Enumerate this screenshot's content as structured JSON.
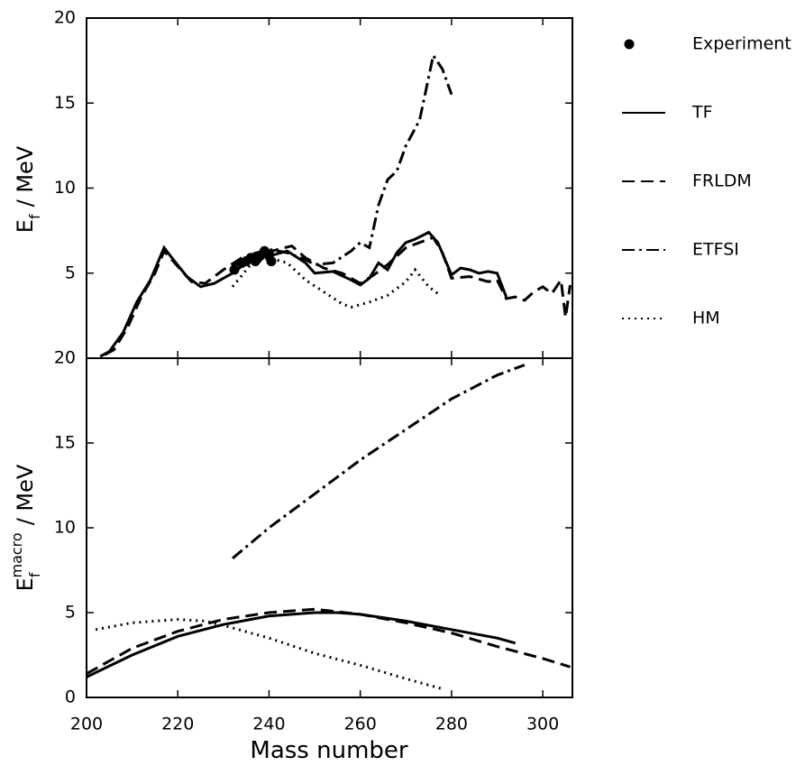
{
  "chart_data": [
    {
      "type": "line",
      "ylabel": "E",
      "ylabel_sub": "f",
      "ylabel_unit": "/ MeV",
      "ylim": [
        0,
        20
      ],
      "yticks": [
        5,
        10,
        15,
        20
      ],
      "series": [
        {
          "name": "Experiment",
          "color": "#000000",
          "marker": "dot",
          "x": [
            232.4,
            234,
            235,
            236,
            237,
            238,
            239,
            240,
            240.5
          ],
          "values": [
            5.2,
            5.6,
            5.7,
            5.9,
            5.7,
            6.0,
            6.3,
            6.1,
            5.7
          ]
        },
        {
          "name": "TF",
          "color": "#000000",
          "dash": "none",
          "x": [
            203,
            205,
            208,
            211,
            214,
            217,
            219,
            222,
            225,
            228,
            232,
            236,
            240,
            244,
            248,
            250,
            254,
            258,
            260,
            262,
            264,
            266,
            268,
            270,
            272,
            275,
            277,
            280,
            282,
            284,
            286,
            288,
            290,
            292
          ],
          "values": [
            0.1,
            0.4,
            1.5,
            3.3,
            4.6,
            6.5,
            5.8,
            4.8,
            4.2,
            4.4,
            5.0,
            5.8,
            6.0,
            6.3,
            5.6,
            5.0,
            5.1,
            4.6,
            4.3,
            4.7,
            5.6,
            5.2,
            6.2,
            6.8,
            7.0,
            7.4,
            6.8,
            4.9,
            5.3,
            5.2,
            5.0,
            5.1,
            5.0,
            3.6
          ]
        },
        {
          "name": "FRLDM",
          "color": "#000000",
          "dash": "14 7",
          "x": [
            204,
            206,
            209,
            212,
            215,
            217,
            220,
            223,
            226,
            230,
            234,
            238,
            242,
            245,
            248,
            252,
            256,
            260,
            263,
            266,
            270,
            273,
            276,
            278,
            280,
            284,
            288,
            290,
            292,
            294,
            296,
            298,
            300,
            302,
            304,
            305,
            306
          ],
          "values": [
            0.2,
            0.5,
            1.8,
            3.6,
            5.0,
            6.3,
            5.4,
            4.5,
            4.4,
            5.2,
            5.9,
            6.1,
            6.4,
            6.6,
            5.9,
            5.3,
            5.0,
            4.4,
            4.9,
            5.5,
            6.5,
            6.8,
            7.1,
            6.2,
            4.7,
            4.8,
            4.5,
            4.6,
            3.5,
            3.6,
            3.4,
            3.9,
            4.2,
            3.8,
            4.6,
            2.4,
            4.3
          ]
        },
        {
          "name": "ETFSI",
          "color": "#000000",
          "dash": "14 5 3 5",
          "x": [
            232,
            236,
            240,
            244,
            248,
            250,
            254,
            258,
            260,
            262,
            264,
            266,
            268,
            270,
            273,
            276,
            278,
            280
          ],
          "values": [
            5.4,
            6.1,
            6.4,
            6.2,
            5.8,
            5.5,
            5.6,
            6.3,
            6.8,
            6.5,
            9.0,
            10.5,
            11.0,
            12.5,
            14.0,
            17.8,
            17.0,
            15.5
          ]
        },
        {
          "name": "HM",
          "color": "#000000",
          "dash": "2 5",
          "x": [
            232,
            236,
            240,
            244,
            248,
            252,
            256,
            258,
            262,
            266,
            270,
            272,
            275,
            277
          ],
          "values": [
            4.2,
            5.5,
            5.9,
            5.6,
            4.6,
            3.9,
            3.2,
            3.0,
            3.3,
            3.7,
            4.5,
            5.2,
            4.2,
            3.8
          ]
        }
      ]
    },
    {
      "type": "line",
      "ylabel": "E",
      "ylabel_sub": "f",
      "ylabel_sup": "macro",
      "ylabel_unit": "/ MeV",
      "xlabel": "Mass number",
      "xlim": [
        200,
        306.5
      ],
      "xticks": [
        200,
        220,
        240,
        260,
        280,
        300
      ],
      "ylim": [
        0,
        20
      ],
      "yticks": [
        0,
        5,
        10,
        15,
        20
      ],
      "series": [
        {
          "color": "#000000",
          "dash": "none",
          "x": [
            200,
            210,
            220,
            230,
            240,
            250,
            255,
            260,
            270,
            280,
            290,
            294
          ],
          "values": [
            1.2,
            2.5,
            3.6,
            4.3,
            4.8,
            5.0,
            5.0,
            4.9,
            4.5,
            4.0,
            3.5,
            3.2
          ]
        },
        {
          "color": "#000000",
          "dash": "14 7",
          "x": [
            200,
            210,
            220,
            230,
            240,
            250,
            260,
            270,
            280,
            290,
            300,
            306
          ],
          "values": [
            1.4,
            2.9,
            3.9,
            4.6,
            5.0,
            5.2,
            4.9,
            4.4,
            3.8,
            3.0,
            2.3,
            1.8
          ]
        },
        {
          "color": "#000000",
          "dash": "14 5 3 5",
          "x": [
            232,
            240,
            250,
            260,
            270,
            280,
            290,
            296
          ],
          "values": [
            8.2,
            10.0,
            12.0,
            14.0,
            15.8,
            17.6,
            19.0,
            19.6
          ]
        },
        {
          "color": "#000000",
          "dash": "2 5",
          "x": [
            202,
            210,
            220,
            226,
            232,
            240,
            250,
            260,
            270,
            278
          ],
          "values": [
            4.0,
            4.4,
            4.6,
            4.5,
            4.1,
            3.5,
            2.6,
            1.9,
            1.1,
            0.5
          ]
        }
      ]
    }
  ]
}
